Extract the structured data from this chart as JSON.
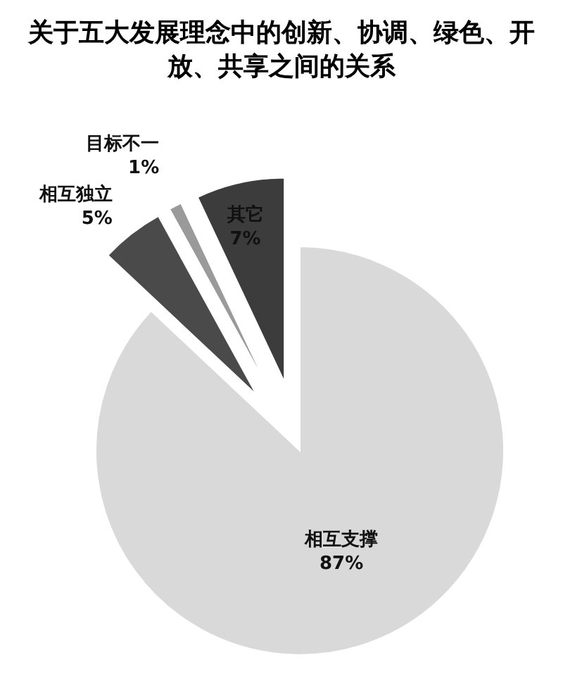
{
  "chart_data": {
    "type": "pie",
    "title": "关于五大发展理念中的创新、协调、绿色、开放、共享之间的关系",
    "categories": [
      "相互支撑",
      "相互独立",
      "目标不一",
      "其它"
    ],
    "values": [
      87,
      5,
      1,
      7
    ],
    "colors": [
      "#d9d9d9",
      "#4a4a4a",
      "#9a9a9a",
      "#3c3c3c"
    ],
    "value_labels": [
      "87%",
      "5%",
      "1%",
      "7%"
    ],
    "legend": false
  }
}
